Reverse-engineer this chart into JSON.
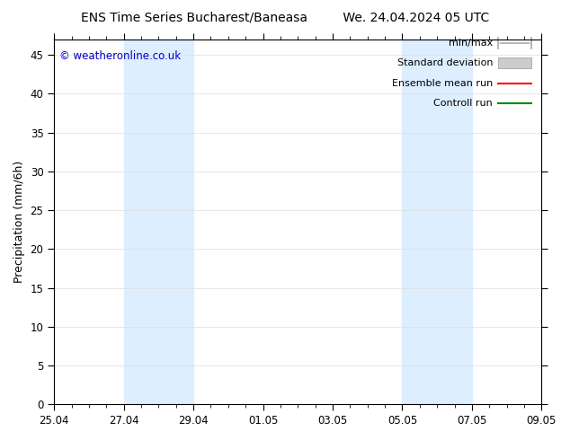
{
  "title_left": "ENS Time Series Bucharest/Baneasa",
  "title_right": "We. 24.04.2024 05 UTC",
  "ylabel": "Precipitation (mm/6h)",
  "ymin": 0,
  "ymax": 47,
  "yticks": [
    0,
    5,
    10,
    15,
    20,
    25,
    30,
    35,
    40,
    45
  ],
  "copyright_text": "© weatheronline.co.uk",
  "copyright_color": "#0000cc",
  "bg_color": "#ffffff",
  "plot_bg_color": "#ffffff",
  "shade_color": "#ddeeff",
  "xtick_labels": [
    "25.04",
    "27.04",
    "29.04",
    "01.05",
    "03.05",
    "05.05",
    "07.05",
    "09.05"
  ],
  "xtick_positions": [
    0,
    2,
    4,
    6,
    8,
    10,
    12,
    14
  ],
  "shade1_start": 2.0,
  "shade1_end": 4.0,
  "shade2_start": 10.0,
  "shade2_end": 12.0,
  "total_days": 14,
  "legend_labels": [
    "min/max",
    "Standard deviation",
    "Ensemble mean run",
    "Controll run"
  ],
  "minmax_color": "#aaaaaa",
  "std_color": "#cccccc",
  "ens_color": "#ff0000",
  "ctrl_color": "#008800",
  "title_fontsize": 10,
  "tick_fontsize": 8.5,
  "ylabel_fontsize": 9,
  "copyright_fontsize": 8.5,
  "legend_fontsize": 8
}
